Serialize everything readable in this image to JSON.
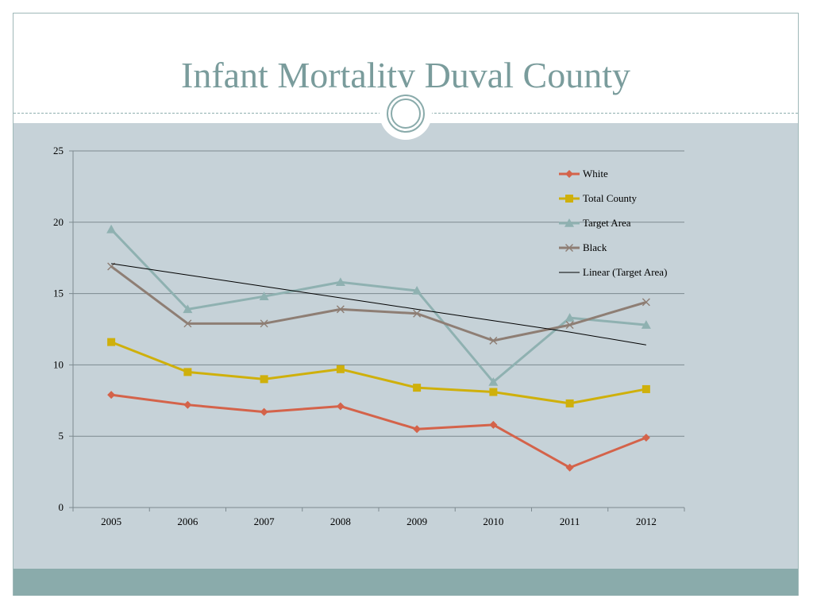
{
  "slide": {
    "title": "Infant Mortality Duval County"
  },
  "colors": {
    "title": "#7a9c9c",
    "background_panel": "#c6d2d8",
    "bottom_band": "#8aabab"
  },
  "chart_data": {
    "type": "line",
    "title": "",
    "xlabel": "",
    "ylabel": "",
    "ylim": [
      0,
      25
    ],
    "yticks": [
      0,
      5,
      10,
      15,
      20,
      25
    ],
    "grid": true,
    "legend_position": "top-right",
    "x": [
      "2005",
      "2006",
      "2007",
      "2008",
      "2009",
      "2010",
      "2011",
      "2012"
    ],
    "series": [
      {
        "name": "White",
        "color": "#d4634a",
        "marker": "diamond",
        "values": [
          7.9,
          7.2,
          6.7,
          7.1,
          5.5,
          5.8,
          2.8,
          4.9
        ]
      },
      {
        "name": "Total County",
        "color": "#cfb00b",
        "marker": "square",
        "values": [
          11.6,
          9.5,
          9.0,
          9.7,
          8.4,
          8.1,
          7.3,
          8.3
        ]
      },
      {
        "name": "Target Area",
        "color": "#8fb1b1",
        "marker": "triangle",
        "values": [
          19.5,
          13.9,
          14.8,
          15.8,
          15.2,
          8.8,
          13.3,
          12.8
        ]
      },
      {
        "name": "Black",
        "color": "#8e7e74",
        "marker": "x",
        "values": [
          16.9,
          12.9,
          12.9,
          13.9,
          13.6,
          11.7,
          12.8,
          14.4
        ]
      },
      {
        "name": "Linear (Target Area)",
        "color": "#000000",
        "marker": "none",
        "trendline": true,
        "values": [
          17.1,
          16.3,
          15.5,
          14.7,
          13.9,
          13.1,
          12.3,
          11.4
        ]
      }
    ]
  }
}
